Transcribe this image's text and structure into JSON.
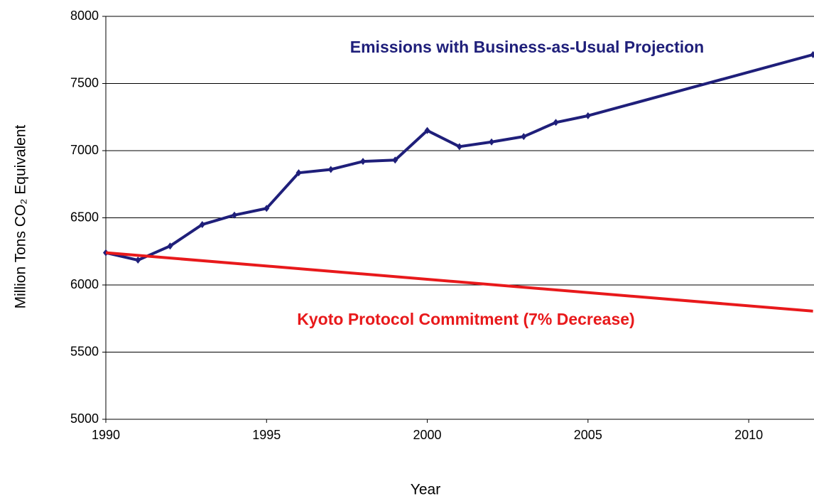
{
  "chart_data": {
    "type": "line",
    "y_label": "Million Tons CO₂ Equivalent",
    "x_label": "Year",
    "xlim": [
      1990,
      2012
    ],
    "xticks": [
      1990,
      1995,
      2000,
      2005,
      2010
    ],
    "ylim": [
      5000,
      8000
    ],
    "yticks": [
      5000,
      5500,
      6000,
      6500,
      7000,
      7500,
      8000
    ],
    "grid": true,
    "series": [
      {
        "name": "Emissions with Business-as-Usual Projection",
        "color": "#1f1f7a",
        "markers": true,
        "x": [
          1990,
          1991,
          1992,
          1993,
          1994,
          1995,
          1996,
          1997,
          1998,
          1999,
          2000,
          2001,
          2002,
          2003,
          2004,
          2005,
          2012
        ],
        "values": [
          6240,
          6185,
          6290,
          6450,
          6520,
          6570,
          6835,
          6860,
          6920,
          6930,
          7150,
          7030,
          7065,
          7105,
          7210,
          7260,
          7715
        ]
      },
      {
        "name": "Kyoto Protocol Commitment (7% Decrease)",
        "color": "#e8191b",
        "markers": false,
        "x": [
          1990,
          2012
        ],
        "values": [
          6240,
          5805
        ]
      }
    ]
  }
}
